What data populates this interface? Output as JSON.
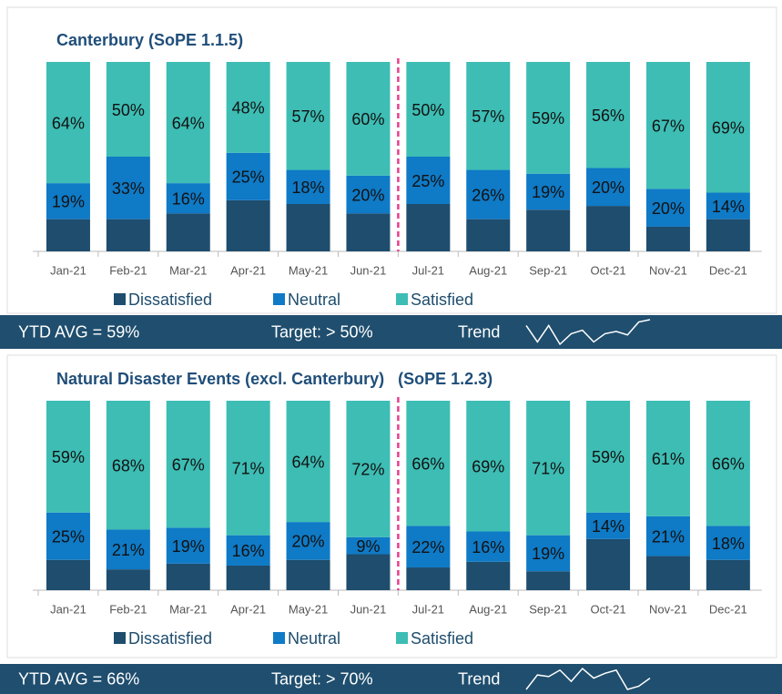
{
  "chart_data": [
    {
      "type": "bar",
      "stacked": true,
      "title": "Canterbury (SoPE 1.1.5)",
      "categories": [
        "Jan-21",
        "Feb-21",
        "Mar-21",
        "Apr-21",
        "May-21",
        "Jun-21",
        "Jul-21",
        "Aug-21",
        "Sep-21",
        "Oct-21",
        "Nov-21",
        "Dec-21"
      ],
      "series": [
        {
          "name": "Dissatisfied",
          "color": "#1e4d6e",
          "values": [
            17,
            17,
            20,
            27,
            25,
            20,
            25,
            17,
            22,
            24,
            13,
            17
          ]
        },
        {
          "name": "Neutral",
          "color": "#0f7ac6",
          "values": [
            19,
            33,
            16,
            25,
            18,
            20,
            25,
            26,
            19,
            20,
            20,
            14
          ],
          "value_labels": [
            "19%",
            "33%",
            "16%",
            "25%",
            "18%",
            "20%",
            "25%",
            "26%",
            "19%",
            "20%",
            "20%",
            "14%"
          ]
        },
        {
          "name": "Satisfied",
          "color": "#3dbdb4",
          "values": [
            64,
            50,
            64,
            48,
            57,
            60,
            50,
            57,
            59,
            56,
            67,
            69
          ],
          "value_labels": [
            "64%",
            "50%",
            "64%",
            "48%",
            "57%",
            "60%",
            "50%",
            "57%",
            "59%",
            "56%",
            "67%",
            "69%"
          ]
        }
      ],
      "ylim": [
        0,
        100
      ],
      "legend_position": "bottom",
      "ytd_avg": "YTD AVG = 59%",
      "target": "Target: > 50%",
      "trend_label": "Trend"
    },
    {
      "type": "bar",
      "stacked": true,
      "title": "Natural Disaster Events (excl. Canterbury)   (SoPE 1.2.3)",
      "categories": [
        "Jan-21",
        "Feb-21",
        "Mar-21",
        "Apr-21",
        "May-21",
        "Jun-21",
        "Jul-21",
        "Aug-21",
        "Sep-21",
        "Oct-21",
        "Nov-21",
        "Dec-21"
      ],
      "series": [
        {
          "name": "Dissatisfied",
          "color": "#1e4d6e",
          "values": [
            16,
            11,
            14,
            13,
            16,
            19,
            12,
            15,
            10,
            27,
            18,
            16
          ]
        },
        {
          "name": "Neutral",
          "color": "#0f7ac6",
          "values": [
            25,
            21,
            19,
            16,
            20,
            9,
            22,
            16,
            19,
            14,
            21,
            18
          ],
          "value_labels": [
            "25%",
            "21%",
            "19%",
            "16%",
            "20%",
            "9%",
            "22%",
            "16%",
            "19%",
            "14%",
            "21%",
            "18%"
          ]
        },
        {
          "name": "Satisfied",
          "color": "#3dbdb4",
          "values": [
            59,
            68,
            67,
            71,
            64,
            72,
            66,
            69,
            71,
            59,
            61,
            66
          ],
          "value_labels": [
            "59%",
            "68%",
            "67%",
            "71%",
            "64%",
            "72%",
            "66%",
            "69%",
            "71%",
            "59%",
            "61%",
            "66%"
          ]
        }
      ],
      "ylim": [
        0,
        100
      ],
      "legend_position": "bottom",
      "ytd_avg": "YTD AVG = 66%",
      "target": "Target: > 70%",
      "trend_label": "Trend"
    }
  ]
}
